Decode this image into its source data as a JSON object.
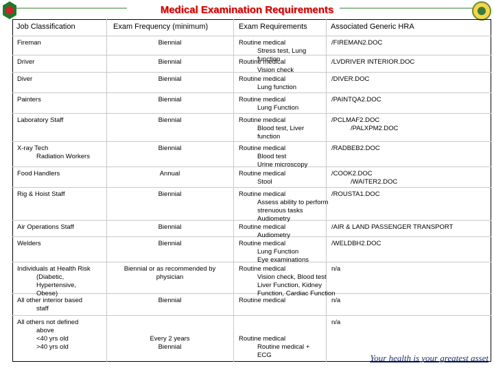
{
  "header": {
    "title": "Medical Examination Requirements"
  },
  "table": {
    "columns": [
      "Job Classification",
      "Exam Frequency (minimum)",
      "Exam Requirements",
      "Associated Generic HRA"
    ],
    "rows": [
      [
        [
          "Fireman"
        ],
        [
          "Biennial"
        ],
        [
          "Routine medical",
          "Stress test, Lung",
          "function"
        ],
        [
          "/FIREMAN2.DOC"
        ]
      ],
      [
        [
          "Driver"
        ],
        [
          "Biennial"
        ],
        [
          "Routine medical",
          "Vision check"
        ],
        [
          "/LVDRIVER INTERIOR.DOC"
        ]
      ],
      [
        [
          "Diver"
        ],
        [
          "Biennial"
        ],
        [
          "Routine medical",
          "Lung function"
        ],
        [
          "/DIVER.DOC"
        ]
      ],
      [
        [
          "Painters"
        ],
        [
          "Biennial"
        ],
        [
          "Routine medical",
          "Lung Function"
        ],
        [
          "/PAINTQA2.DOC"
        ]
      ],
      [
        [
          "Laboratory Staff"
        ],
        [
          "Biennial"
        ],
        [
          "Routine medical",
          "Blood test, Liver",
          "function"
        ],
        [
          "/PCLMAF2.DOC",
          "/PALXPM2.DOC"
        ]
      ],
      [
        [
          "X-ray Tech",
          "Radiation Workers"
        ],
        [
          "Biennial"
        ],
        [
          "Routine medical",
          "Blood test",
          "Urine microscopy"
        ],
        [
          "/RADBEB2.DOC"
        ]
      ],
      [
        [
          "Food Handlers"
        ],
        [
          "Annual"
        ],
        [
          "Routine medical",
          "Stool"
        ],
        [
          "/COOK2.DOC",
          "/WAITER2.DOC"
        ]
      ],
      [
        [
          "Rig & Hoist Staff"
        ],
        [
          "Biennial"
        ],
        [
          "Routine medical",
          "Assess ability to perform",
          "strenuous tasks",
          "Audiometry"
        ],
        [
          "/ROUSTA1.DOC"
        ]
      ],
      [
        [
          "Air Operations Staff"
        ],
        [
          "Biennial"
        ],
        [
          "Routine medical",
          "Audiometry"
        ],
        [
          "/AIR & LAND PASSENGER TRANSPORT"
        ]
      ],
      [
        [
          "Welders"
        ],
        [
          "Biennial"
        ],
        [
          "Routine medical",
          "Lung Function",
          "Eye examinations"
        ],
        [
          "/WELDBH2.DOC"
        ]
      ],
      [
        [
          "Individuals at Health Risk",
          "(Diabetic,",
          "Hypertensive,",
          "Obese)"
        ],
        [
          "Biennial or as recommended by",
          "physician"
        ],
        [
          "Routine medical",
          "Vision check, Blood test",
          "Liver Function, Kidney",
          "Function, Cardiac Function"
        ],
        [
          "n/a"
        ]
      ],
      [
        [
          "All other interior based",
          "staff"
        ],
        [
          "Biennial"
        ],
        [
          "Routine medical"
        ],
        [
          "n/a"
        ]
      ],
      [
        [
          "All others not defined",
          "above",
          "<40 yrs old",
          ">40 yrs old"
        ],
        [
          "Every 2 years",
          "Biennial"
        ],
        [
          "Routine medical",
          "Routine medical +",
          "ECG"
        ],
        [
          "n/a"
        ]
      ]
    ]
  },
  "footer": {
    "slogan": "Your health is your greatest asset"
  }
}
